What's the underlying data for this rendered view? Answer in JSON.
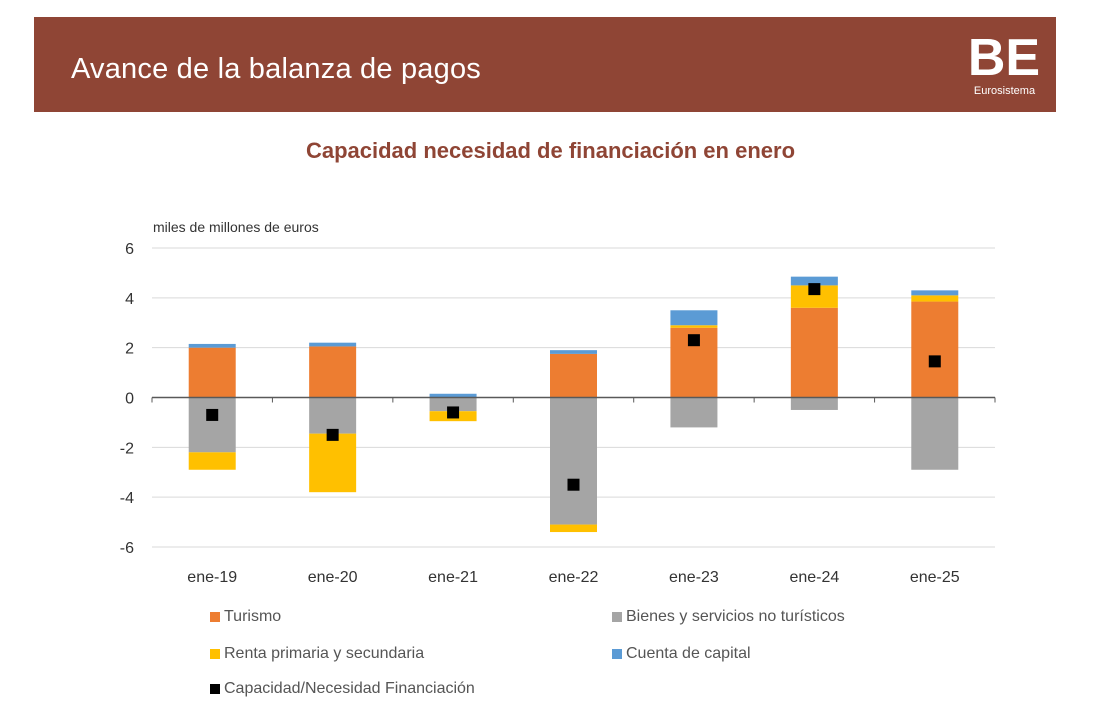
{
  "header": {
    "title": "Avance de la balanza de pagos",
    "logo_text": "BE",
    "logo_caption": "Eurosistema"
  },
  "chart_data": {
    "type": "bar",
    "stacked": true,
    "title": "Capacidad necesidad de financiación en enero",
    "ylabel": "miles de millones de euros",
    "xlabel": "",
    "ylim": [
      -6,
      6
    ],
    "yticks": [
      6,
      4,
      2,
      0,
      -2,
      -4,
      -6
    ],
    "grid": true,
    "legend_position": "bottom",
    "categories": [
      "ene-19",
      "ene-20",
      "ene-21",
      "ene-22",
      "ene-23",
      "ene-24",
      "ene-25"
    ],
    "series": [
      {
        "name": "Turismo",
        "color": "#ed7d31",
        "values": [
          2.0,
          2.05,
          0.0,
          1.75,
          2.8,
          3.6,
          3.85
        ]
      },
      {
        "name": "Bienes y servicios no turísticos",
        "color": "#a5a5a5",
        "values": [
          -2.2,
          -1.45,
          -0.55,
          -5.1,
          -1.2,
          -0.5,
          -2.9
        ]
      },
      {
        "name": "Renta primaria y secundaria",
        "color": "#ffc000",
        "values": [
          -0.7,
          -2.35,
          0.0,
          -0.3,
          0.1,
          0.9,
          0.25
        ]
      },
      {
        "name": "Cuenta de capital",
        "color": "#5b9bd5",
        "values": [
          0.15,
          0.15,
          0.15,
          0.15,
          0.6,
          0.35,
          0.2
        ]
      }
    ],
    "residual_segments": {
      "note_values": [
        0.0,
        0.0,
        -0.4,
        0.0,
        0.0,
        0.0,
        0.0
      ],
      "series_name": "Renta primaria y secundaria"
    },
    "markers": {
      "name": "Capacidad/Necesidad Financiación",
      "color": "#000000",
      "values": [
        -0.7,
        -1.5,
        -0.6,
        -3.5,
        2.3,
        4.35,
        1.45
      ]
    }
  },
  "legend": [
    {
      "label": "Turismo",
      "color": "#ed7d31"
    },
    {
      "label": "Bienes y servicios no turísticos",
      "color": "#a5a5a5"
    },
    {
      "label": "Renta primaria y secundaria",
      "color": "#ffc000"
    },
    {
      "label": "Cuenta de capital",
      "color": "#5b9bd5"
    },
    {
      "label": "Capacidad/Necesidad Financiación",
      "color": "#000000"
    }
  ]
}
